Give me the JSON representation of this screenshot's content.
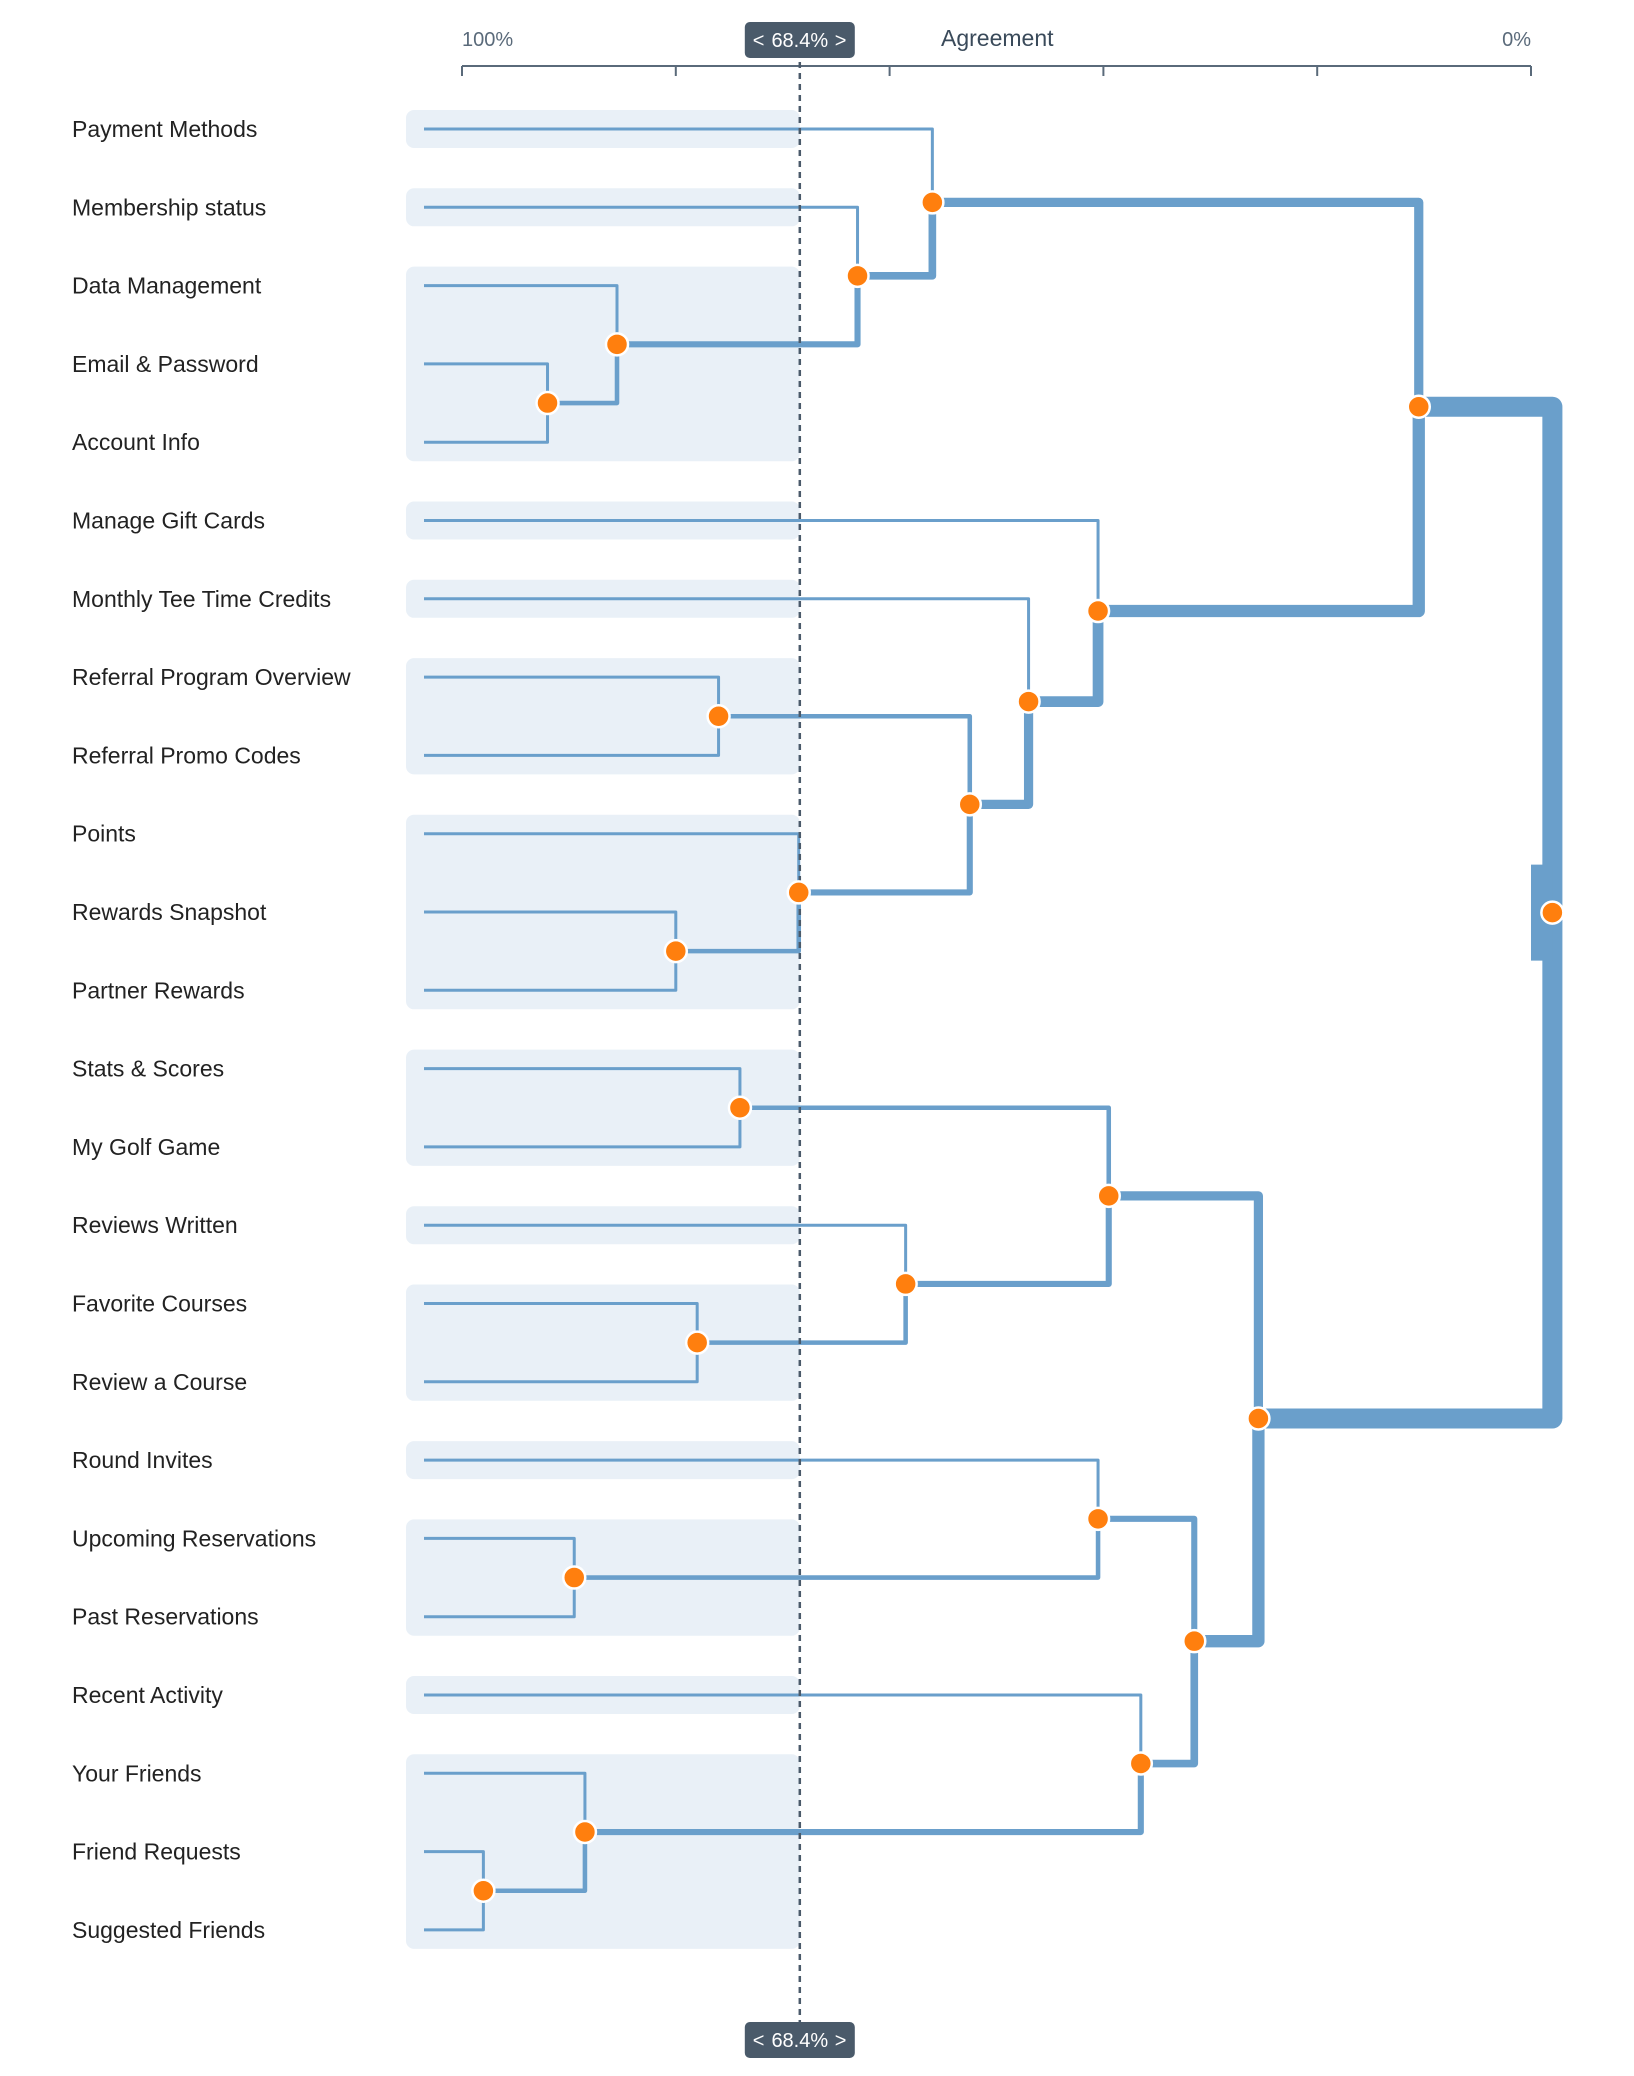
{
  "axis": {
    "title": "Agreement",
    "left_label": "100%",
    "right_label": "0%",
    "domain": [
      100,
      0
    ]
  },
  "threshold": {
    "value": 68.4,
    "label": "68.4%",
    "left_arrow": "<",
    "right_arrow": ">"
  },
  "colors": {
    "link": "#6a9fcb",
    "node": "#ff7f0e",
    "band": "#e9f0f7",
    "threshold_line": "#4a5a6a",
    "badge": "#4a5a6a",
    "axis": "#5a6a7a"
  },
  "leaves": [
    "Payment Methods",
    "Membership status",
    "Data Management",
    "Email & Password",
    "Account Info",
    "Manage Gift Cards",
    "Monthly Tee Time Credits",
    "Referral Program Overview",
    "Referral Promo Codes",
    "Points",
    "Rewards Snapshot",
    "Partner Rewards",
    "Stats & Scores",
    "My Golf Game",
    "Reviews Written",
    "Favorite Courses",
    "Review a Course",
    "Round Invites",
    "Upcoming Reservations",
    "Past Reservations",
    "Recent Activity",
    "Your Friends",
    "Friend Requests",
    "Suggested Friends"
  ],
  "groups": [
    [
      0,
      0
    ],
    [
      1,
      1
    ],
    [
      2,
      4
    ],
    [
      5,
      5
    ],
    [
      6,
      6
    ],
    [
      7,
      8
    ],
    [
      9,
      11
    ],
    [
      12,
      13
    ],
    [
      14,
      14
    ],
    [
      15,
      16
    ],
    [
      17,
      17
    ],
    [
      18,
      19
    ],
    [
      20,
      20
    ],
    [
      21,
      23
    ]
  ],
  "merges": [
    {
      "id": "m_ea",
      "a": 3,
      "b": 4,
      "agreement": 92.0
    },
    {
      "id": "m_dea",
      "a": 2,
      "b": "m_ea",
      "agreement": 85.5
    },
    {
      "id": "m_ms",
      "a": 1,
      "b": "m_dea",
      "agreement": 63.0
    },
    {
      "id": "m_pm",
      "a": 0,
      "b": "m_ms",
      "agreement": 56.0
    },
    {
      "id": "m_ref",
      "a": 7,
      "b": 8,
      "agreement": 76.0
    },
    {
      "id": "m_rp",
      "a": 10,
      "b": 11,
      "agreement": 80.0
    },
    {
      "id": "m_pts",
      "a": 9,
      "b": "m_rp",
      "agreement": 68.5
    },
    {
      "id": "m_refpts",
      "a": "m_ref",
      "b": "m_pts",
      "agreement": 52.5
    },
    {
      "id": "m_mt",
      "a": 6,
      "b": "m_refpts",
      "agreement": 47.0
    },
    {
      "id": "m_gc",
      "a": 5,
      "b": "m_mt",
      "agreement": 40.5
    },
    {
      "id": "m_acct",
      "a": "m_pm",
      "b": "m_gc",
      "agreement": 10.5
    },
    {
      "id": "m_stats",
      "a": 12,
      "b": 13,
      "agreement": 74.0
    },
    {
      "id": "m_fav",
      "a": 15,
      "b": 16,
      "agreement": 78.0
    },
    {
      "id": "m_rw",
      "a": 14,
      "b": "m_fav",
      "agreement": 58.5
    },
    {
      "id": "m_sg",
      "a": "m_stats",
      "b": "m_rw",
      "agreement": 39.5
    },
    {
      "id": "m_res",
      "a": 18,
      "b": 19,
      "agreement": 89.5
    },
    {
      "id": "m_ri",
      "a": 17,
      "b": "m_res",
      "agreement": 40.5
    },
    {
      "id": "m_fr",
      "a": 22,
      "b": 23,
      "agreement": 98.0
    },
    {
      "id": "m_friends",
      "a": 21,
      "b": "m_fr",
      "agreement": 88.5
    },
    {
      "id": "m_ra",
      "a": 20,
      "b": "m_friends",
      "agreement": 36.5
    },
    {
      "id": "m_social",
      "a": "m_ri",
      "b": "m_ra",
      "agreement": 31.5
    },
    {
      "id": "m_bot",
      "a": "m_sg",
      "b": "m_social",
      "agreement": 25.5
    },
    {
      "id": "m_root",
      "a": "m_acct",
      "b": "m_bot",
      "agreement": -2.0
    }
  ]
}
